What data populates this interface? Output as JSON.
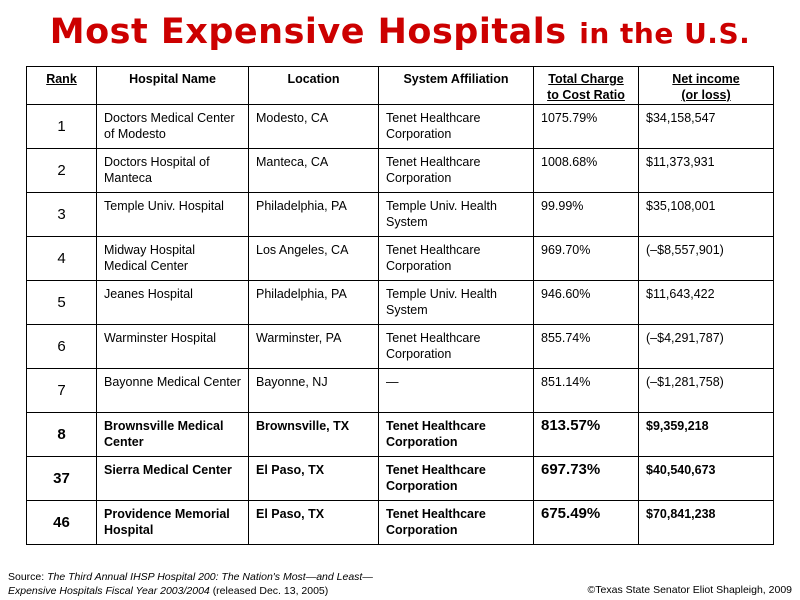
{
  "title": {
    "main": "Most Expensive Hospitals",
    "suffix": "in the U.S."
  },
  "table": {
    "headers": {
      "rank": "Rank",
      "name": "Hospital Name",
      "location": "Location",
      "affiliation": "System Affiliation",
      "ratio_line1": "Total Charge",
      "ratio_line2": "to Cost Ratio",
      "income_line1": "Net income",
      "income_line2": "(or loss)"
    },
    "rows": [
      {
        "rank": "1",
        "name": "Doctors Medical Center of Modesto",
        "location": "Modesto, CA",
        "affiliation": "Tenet Healthcare Corporation",
        "ratio": "1075.79%",
        "income": "$34,158,547"
      },
      {
        "rank": "2",
        "name": "Doctors Hospital of Manteca",
        "location": "Manteca, CA",
        "affiliation": "Tenet Healthcare Corporation",
        "ratio": "1008.68%",
        "income": "$11,373,931"
      },
      {
        "rank": "3",
        "name": "Temple Univ. Hospital",
        "location": "Philadelphia, PA",
        "affiliation": "Temple Univ. Health System",
        "ratio": "99.99%",
        "income": "$35,108,001"
      },
      {
        "rank": "4",
        "name": "Midway Hospital Medical Center",
        "location": "Los Angeles, CA",
        "affiliation": "Tenet Healthcare Corporation",
        "ratio": "969.70%",
        "income": "(–$8,557,901)"
      },
      {
        "rank": "5",
        "name": "Jeanes Hospital",
        "location": "Philadelphia, PA",
        "affiliation": "Temple Univ. Health System",
        "ratio": "946.60%",
        "income": "$11,643,422"
      },
      {
        "rank": "6",
        "name": "Warminster Hospital",
        "location": "Warminster, PA",
        "affiliation": "Tenet Healthcare Corporation",
        "ratio": "855.74%",
        "income": "(–$4,291,787)"
      },
      {
        "rank": "7",
        "name": "Bayonne Medical Center",
        "location": "Bayonne, NJ",
        "affiliation": "—",
        "ratio": "851.14%",
        "income": "(–$1,281,758)"
      },
      {
        "rank": "8",
        "name": "Brownsville Medical Center",
        "location": "Brownsville, TX",
        "affiliation": "Tenet Healthcare Corporation",
        "ratio": "813.57%",
        "income": "$9,359,218"
      },
      {
        "rank": "37",
        "name": "Sierra Medical Center",
        "location": "El Paso, TX",
        "affiliation": "Tenet Healthcare Corporation",
        "ratio": "697.73%",
        "income": "$40,540,673"
      },
      {
        "rank": "46",
        "name": "Providence Memorial Hospital",
        "location": "El Paso, TX",
        "affiliation": "Tenet Healthcare Corporation",
        "ratio": "675.49%",
        "income": "$70,841,238"
      }
    ]
  },
  "footer": {
    "source_label": "Source:",
    "source_title_line1": "The Third Annual IHSP Hospital 200:  The Nation's Most—and Least—",
    "source_title_line2": "Expensive Hospitals Fiscal Year 2003/2004",
    "source_note": "(released Dec. 13, 2005)",
    "copyright": "©Texas State Senator Eliot Shapleigh, 2009"
  }
}
